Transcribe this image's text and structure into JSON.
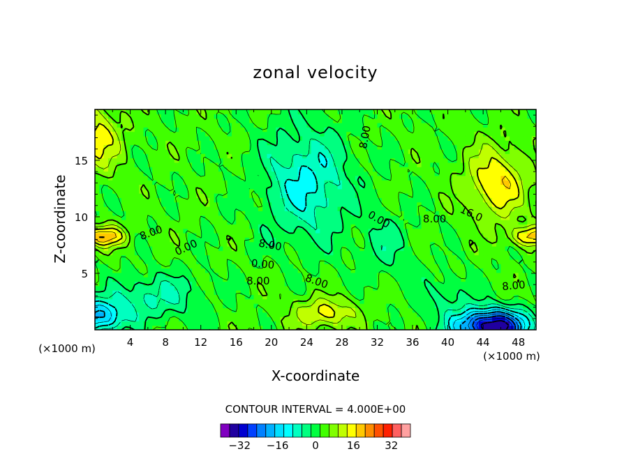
{
  "chart_data": {
    "type": "heatmap",
    "subtype": "filled-contour",
    "title": "zonal velocity",
    "xlabel": "X-coordinate",
    "ylabel": "Z-coordinate",
    "x_unit_left": "(×1000 m)",
    "x_unit_right": "(×1000 m)",
    "xlim": [
      0,
      50
    ],
    "ylim": [
      0,
      19.5
    ],
    "x_ticks": [
      4,
      8,
      12,
      16,
      20,
      24,
      28,
      32,
      36,
      40,
      44,
      48
    ],
    "y_ticks": [
      5,
      10,
      15
    ],
    "contour_interval_text": "CONTOUR INTERVAL = 4.000E+00",
    "contour_interval": 4,
    "contour_labels": [
      "8.00",
      "0.00",
      "8.00",
      "0.00",
      "8.00",
      "8.00",
      "0.00",
      "8.00",
      "16.0",
      "8.00",
      "8.00"
    ],
    "colorbar": {
      "tick_labels": [
        "−32",
        "−16",
        "0",
        "16",
        "32"
      ],
      "tick_values": [
        -32,
        -16,
        0,
        16,
        32
      ],
      "levels": [
        -40,
        -36,
        -32,
        -28,
        -24,
        -20,
        -16,
        -12,
        -8,
        -4,
        0,
        4,
        8,
        12,
        16,
        20,
        24,
        28,
        32,
        36,
        40
      ],
      "colors": [
        "#8000c0",
        "#2000a0",
        "#0000d0",
        "#0040ff",
        "#0080ff",
        "#00b0ff",
        "#00e0ff",
        "#00ffff",
        "#00ffc0",
        "#00ff80",
        "#00ff40",
        "#40ff00",
        "#80ff00",
        "#c0ff00",
        "#ffff00",
        "#ffc800",
        "#ff8c00",
        "#ff5000",
        "#ff2000",
        "#ff6060",
        "#ffa0a0"
      ]
    },
    "key_features": [
      {
        "feature": "cyan jet core (about -8)",
        "x": [
          19,
          28
        ],
        "z": [
          8,
          19.5
        ]
      },
      {
        "feature": "orange maximum (about 20)",
        "x": [
          43,
          48
        ],
        "z": [
          10,
          16
        ]
      },
      {
        "feature": "red maximum near right edge",
        "x": [
          47,
          50
        ],
        "z": [
          7.5,
          9
        ]
      },
      {
        "feature": "blue minimum (about -36)",
        "x": [
          42,
          48
        ],
        "z": [
          0,
          1.5
        ]
      },
      {
        "feature": "orange maximum near left edge",
        "x": [
          0,
          3
        ],
        "z": [
          7,
          9.5
        ]
      },
      {
        "feature": "yellow/orange surface maximum",
        "x": [
          22,
          30
        ],
        "z": [
          0,
          2.5
        ]
      }
    ]
  }
}
